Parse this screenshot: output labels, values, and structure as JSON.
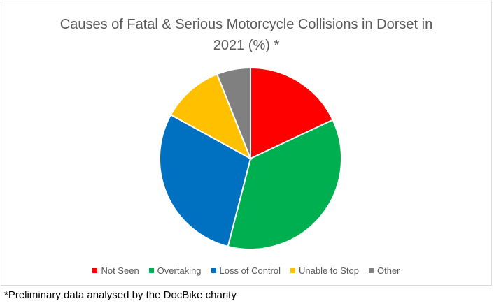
{
  "chart_data": {
    "type": "pie",
    "title_line1": "Causes of Fatal & Serious Motorcycle Collisions in Dorset in",
    "title_line2": "2021 (%) *",
    "categories": [
      "Not Seen",
      "Overtaking",
      "Loss of Control",
      "Unable to Stop",
      "Other"
    ],
    "values": [
      18,
      36,
      29,
      11,
      6
    ],
    "colors": [
      "#ff0000",
      "#00b050",
      "#0070c0",
      "#ffc000",
      "#808080"
    ],
    "legend_position": "bottom"
  },
  "footnote": "*Preliminary data analysed by the DocBike charity"
}
